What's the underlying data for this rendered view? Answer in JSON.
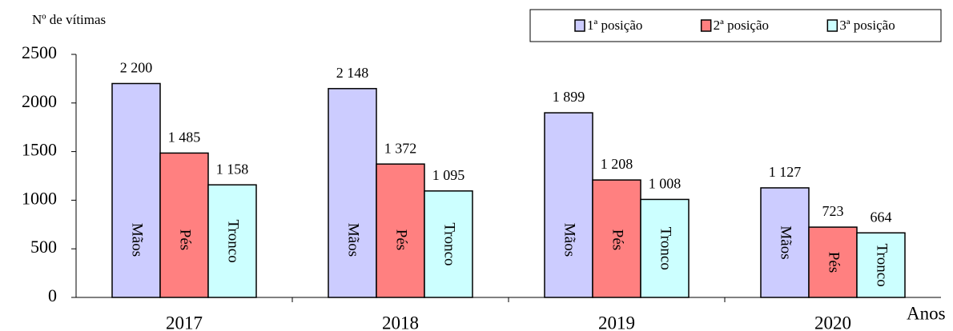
{
  "chart_data": {
    "type": "bar",
    "y_label": "Nº de vítimas",
    "x_label": "Anos",
    "categories": [
      "2017",
      "2018",
      "2019",
      "2020"
    ],
    "series": [
      {
        "name": "1ª posição",
        "color": "#ccccff",
        "values": [
          2200,
          2148,
          1899,
          1127
        ],
        "value_labels": [
          "2 200",
          "2 148",
          "1 899",
          "1 127"
        ],
        "bar_labels": [
          "Mãos",
          "Mãos",
          "Mãos",
          "Mãos"
        ]
      },
      {
        "name": "2ª posição",
        "color": "#ff8080",
        "values": [
          1485,
          1372,
          1208,
          723
        ],
        "value_labels": [
          "1 485",
          "1 372",
          "1 208",
          "723"
        ],
        "bar_labels": [
          "Pés",
          "Pés",
          "Pés",
          "Pés"
        ]
      },
      {
        "name": "3ª posição",
        "color": "#ccffff",
        "values": [
          1158,
          1095,
          1008,
          664
        ],
        "value_labels": [
          "1 158",
          "1 095",
          "1 008",
          "664"
        ],
        "bar_labels": [
          "Tronco",
          "Tronco",
          "Tronco",
          "Tronco"
        ]
      }
    ],
    "ylim": [
      0,
      2500
    ],
    "yticks": [
      0,
      500,
      1000,
      1500,
      2000,
      2500
    ],
    "grid": false,
    "legend": "top-right"
  }
}
